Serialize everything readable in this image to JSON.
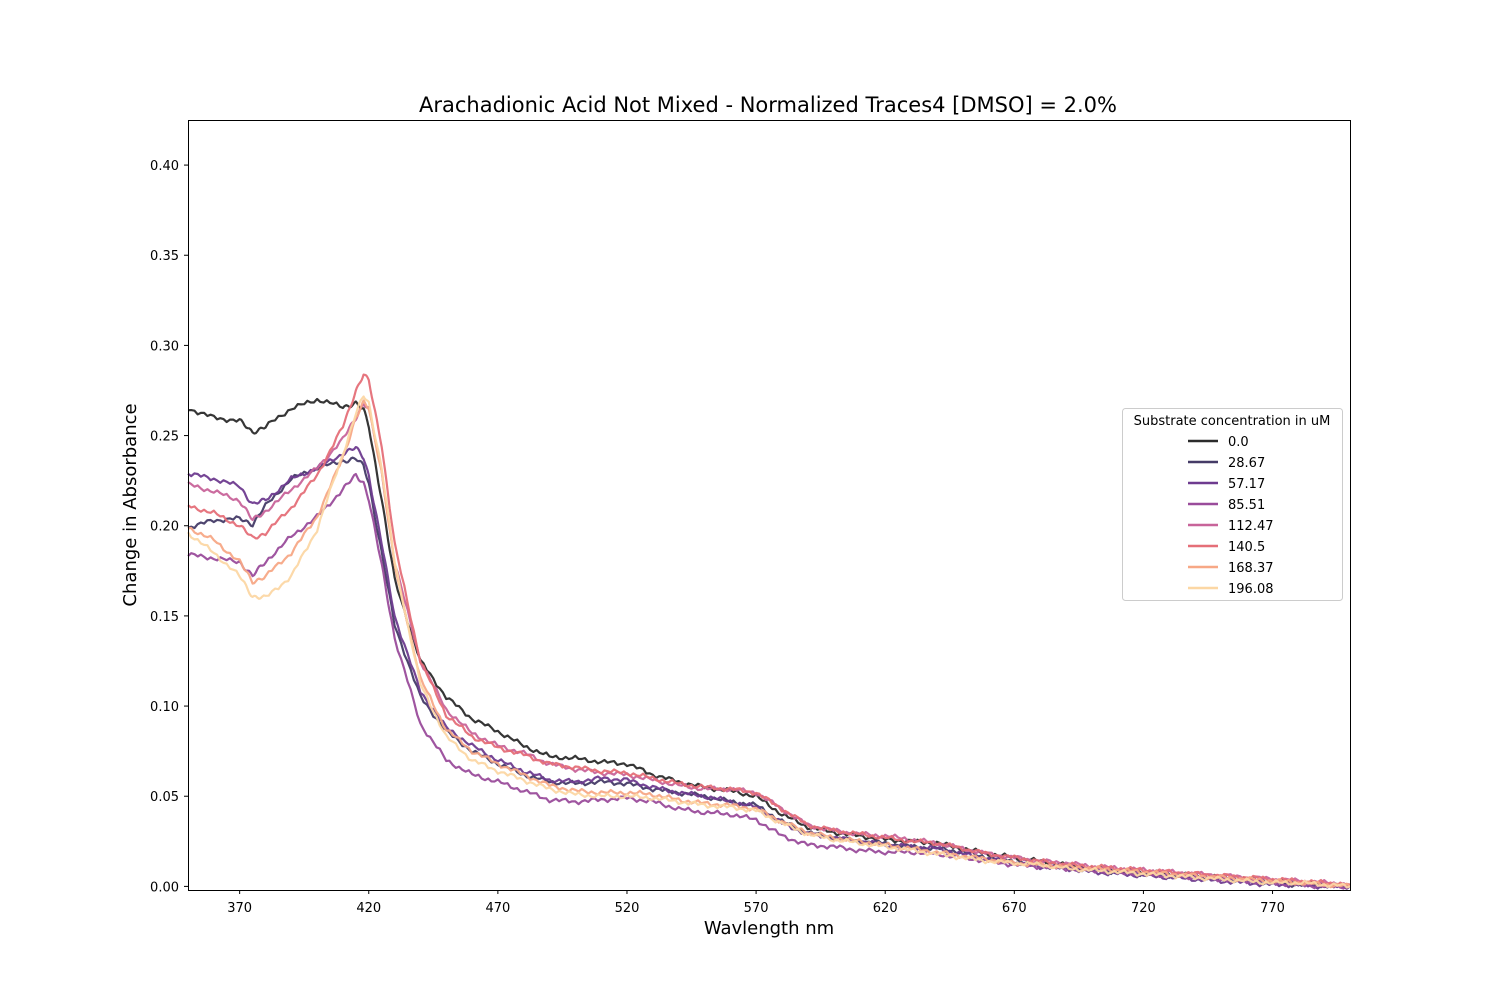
{
  "chart_data": {
    "type": "line",
    "title": "Arachadionic Acid Not Mixed - Normalized Traces4 [DMSO] = 2.0%",
    "xlabel": "Wavlength nm",
    "ylabel": "Change in Absorbance",
    "xlim": [
      350,
      800
    ],
    "ylim": [
      -0.002,
      0.425
    ],
    "x_ticks": [
      370,
      420,
      470,
      520,
      570,
      620,
      670,
      720,
      770
    ],
    "y_ticks": [
      0.0,
      0.05,
      0.1,
      0.15,
      0.2,
      0.25,
      0.3,
      0.35,
      0.4
    ],
    "y_tick_labels": [
      "0.00",
      "0.05",
      "0.10",
      "0.15",
      "0.20",
      "0.25",
      "0.30",
      "0.35",
      "0.40"
    ],
    "grid": false,
    "legend": {
      "title": "Substrate concentration in uM",
      "position": "center-right"
    },
    "x": [
      350,
      360,
      370,
      375,
      380,
      390,
      400,
      410,
      415,
      418,
      420,
      425,
      430,
      440,
      450,
      460,
      470,
      480,
      490,
      500,
      510,
      520,
      530,
      540,
      550,
      560,
      570,
      580,
      590,
      600,
      610,
      620,
      630,
      640,
      650,
      660,
      670,
      680,
      690,
      700,
      710,
      720,
      730,
      740,
      750,
      760,
      770,
      780,
      790,
      800
    ],
    "series": [
      {
        "name": "0.0",
        "color": "#2b2b2b",
        "values": [
          0.265,
          0.26,
          0.258,
          0.252,
          0.255,
          0.265,
          0.27,
          0.266,
          0.268,
          0.264,
          0.255,
          0.215,
          0.17,
          0.125,
          0.105,
          0.093,
          0.086,
          0.078,
          0.072,
          0.071,
          0.069,
          0.068,
          0.062,
          0.058,
          0.055,
          0.053,
          0.05,
          0.04,
          0.033,
          0.03,
          0.028,
          0.026,
          0.025,
          0.024,
          0.021,
          0.018,
          0.016,
          0.014,
          0.012,
          0.01,
          0.009,
          0.008,
          0.007,
          0.006,
          0.005,
          0.004,
          0.003,
          0.002,
          0.001,
          0.0
        ]
      },
      {
        "name": "28.67",
        "color": "#453b67",
        "values": [
          0.199,
          0.203,
          0.204,
          0.201,
          0.211,
          0.226,
          0.232,
          0.236,
          0.237,
          0.233,
          0.224,
          0.185,
          0.145,
          0.105,
          0.086,
          0.075,
          0.068,
          0.062,
          0.058,
          0.057,
          0.058,
          0.057,
          0.054,
          0.052,
          0.05,
          0.047,
          0.045,
          0.036,
          0.03,
          0.027,
          0.025,
          0.024,
          0.022,
          0.021,
          0.019,
          0.016,
          0.014,
          0.012,
          0.011,
          0.009,
          0.008,
          0.007,
          0.006,
          0.005,
          0.004,
          0.003,
          0.002,
          0.001,
          0.001,
          0.0
        ]
      },
      {
        "name": "57.17",
        "color": "#6e3b8f",
        "values": [
          0.229,
          0.226,
          0.222,
          0.212,
          0.214,
          0.226,
          0.232,
          0.24,
          0.243,
          0.238,
          0.228,
          0.19,
          0.15,
          0.108,
          0.088,
          0.078,
          0.07,
          0.064,
          0.059,
          0.058,
          0.06,
          0.059,
          0.055,
          0.052,
          0.05,
          0.047,
          0.044,
          0.035,
          0.029,
          0.027,
          0.025,
          0.023,
          0.022,
          0.021,
          0.018,
          0.015,
          0.013,
          0.011,
          0.01,
          0.008,
          0.007,
          0.006,
          0.005,
          0.004,
          0.003,
          0.002,
          0.001,
          0.001,
          0.0,
          0.0
        ]
      },
      {
        "name": "85.51",
        "color": "#9a4c9b",
        "values": [
          0.184,
          0.182,
          0.18,
          0.172,
          0.18,
          0.194,
          0.205,
          0.22,
          0.228,
          0.224,
          0.215,
          0.178,
          0.138,
          0.09,
          0.07,
          0.062,
          0.058,
          0.053,
          0.048,
          0.047,
          0.048,
          0.049,
          0.047,
          0.043,
          0.041,
          0.04,
          0.037,
          0.028,
          0.023,
          0.022,
          0.02,
          0.019,
          0.019,
          0.018,
          0.016,
          0.014,
          0.012,
          0.011,
          0.01,
          0.009,
          0.008,
          0.007,
          0.006,
          0.005,
          0.004,
          0.003,
          0.002,
          0.001,
          0.0,
          0.0
        ]
      },
      {
        "name": "112.47",
        "color": "#c8649a",
        "values": [
          0.223,
          0.219,
          0.214,
          0.203,
          0.208,
          0.22,
          0.232,
          0.248,
          0.26,
          0.268,
          0.265,
          0.23,
          0.18,
          0.125,
          0.098,
          0.085,
          0.078,
          0.074,
          0.068,
          0.065,
          0.063,
          0.062,
          0.059,
          0.056,
          0.054,
          0.054,
          0.052,
          0.043,
          0.034,
          0.031,
          0.029,
          0.028,
          0.026,
          0.024,
          0.021,
          0.018,
          0.016,
          0.014,
          0.013,
          0.011,
          0.01,
          0.009,
          0.008,
          0.007,
          0.006,
          0.005,
          0.004,
          0.003,
          0.002,
          0.001
        ]
      },
      {
        "name": "140.5",
        "color": "#e56f78",
        "values": [
          0.211,
          0.207,
          0.2,
          0.193,
          0.196,
          0.21,
          0.228,
          0.255,
          0.275,
          0.284,
          0.28,
          0.245,
          0.19,
          0.125,
          0.095,
          0.083,
          0.077,
          0.073,
          0.068,
          0.066,
          0.064,
          0.063,
          0.06,
          0.057,
          0.055,
          0.054,
          0.052,
          0.043,
          0.034,
          0.031,
          0.029,
          0.027,
          0.025,
          0.024,
          0.021,
          0.018,
          0.016,
          0.014,
          0.012,
          0.011,
          0.01,
          0.009,
          0.008,
          0.007,
          0.006,
          0.005,
          0.004,
          0.003,
          0.002,
          0.001
        ]
      },
      {
        "name": "168.37",
        "color": "#f7a886",
        "values": [
          0.199,
          0.192,
          0.18,
          0.169,
          0.172,
          0.185,
          0.205,
          0.238,
          0.26,
          0.268,
          0.265,
          0.23,
          0.178,
          0.115,
          0.087,
          0.075,
          0.068,
          0.062,
          0.056,
          0.053,
          0.052,
          0.052,
          0.051,
          0.048,
          0.046,
          0.045,
          0.043,
          0.036,
          0.03,
          0.027,
          0.025,
          0.023,
          0.021,
          0.019,
          0.017,
          0.015,
          0.013,
          0.012,
          0.011,
          0.01,
          0.009,
          0.008,
          0.007,
          0.006,
          0.005,
          0.004,
          0.003,
          0.002,
          0.001,
          0.0
        ]
      },
      {
        "name": "196.08",
        "color": "#fcd7a4",
        "values": [
          0.196,
          0.185,
          0.172,
          0.161,
          0.16,
          0.172,
          0.198,
          0.24,
          0.262,
          0.272,
          0.268,
          0.232,
          0.18,
          0.112,
          0.083,
          0.07,
          0.064,
          0.059,
          0.054,
          0.051,
          0.05,
          0.05,
          0.049,
          0.047,
          0.045,
          0.044,
          0.042,
          0.035,
          0.029,
          0.026,
          0.024,
          0.022,
          0.02,
          0.018,
          0.016,
          0.014,
          0.013,
          0.012,
          0.01,
          0.009,
          0.008,
          0.007,
          0.006,
          0.005,
          0.004,
          0.003,
          0.002,
          0.002,
          0.001,
          0.0
        ]
      }
    ]
  }
}
